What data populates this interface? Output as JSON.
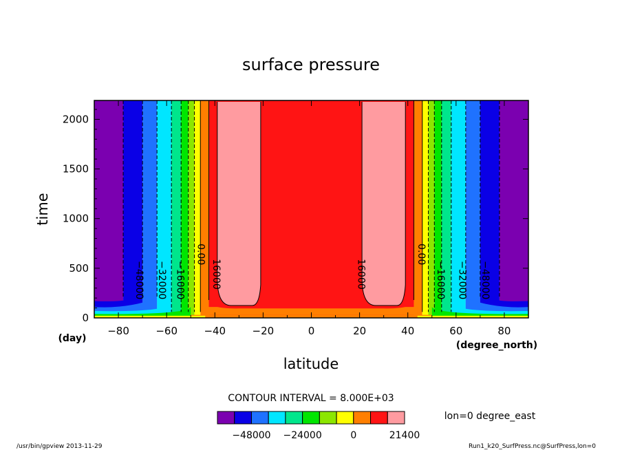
{
  "chart_data": {
    "type": "heatmap",
    "title": "surface pressure",
    "xlabel": "latitude",
    "ylabel": "time",
    "x_unit": "(degree_north)",
    "y_unit": "(day)",
    "xlim": [
      -90,
      90
    ],
    "ylim": [
      0,
      2190
    ],
    "x_ticks": [
      -80,
      -60,
      -40,
      -20,
      0,
      20,
      40,
      60,
      80
    ],
    "y_ticks": [
      0,
      500,
      1000,
      1500,
      2000
    ],
    "x_tick_labels": [
      "−80",
      "−60",
      "−40",
      "−20",
      "0",
      "20",
      "40",
      "60",
      "80"
    ],
    "y_tick_labels": [
      "0",
      "500",
      "1000",
      "1500",
      "2000"
    ],
    "contour_interval": "CONTOUR INTERVAL = 8.000E+03",
    "contour_labels": [
      {
        "text": "−48000",
        "lat": -71.5,
        "time": 380
      },
      {
        "text": "−32000",
        "lat": -62,
        "time": 380
      },
      {
        "text": "−16000",
        "lat": -54.5,
        "time": 380
      },
      {
        "text": "0.00",
        "lat": -46,
        "time": 640
      },
      {
        "text": "16000",
        "lat": -39.5,
        "time": 440
      },
      {
        "text": "16000",
        "lat": 20.5,
        "time": 440
      },
      {
        "text": "0.00",
        "lat": 45.5,
        "time": 640
      },
      {
        "text": "−16000",
        "lat": 53.5,
        "time": 380
      },
      {
        "text": "−32000",
        "lat": 62.5,
        "time": 380
      },
      {
        "text": "−48000",
        "lat": 72,
        "time": 380
      }
    ],
    "steady_state_bands": [
      {
        "lat": [
          -90,
          -78
        ],
        "color": "#7b00b0"
      },
      {
        "lat": [
          -78,
          -70
        ],
        "color": "#0a00e6"
      },
      {
        "lat": [
          -70,
          -64
        ],
        "color": "#1f72ff"
      },
      {
        "lat": [
          -64,
          -58
        ],
        "color": "#00e6ff"
      },
      {
        "lat": [
          -58,
          -54
        ],
        "color": "#00e68c"
      },
      {
        "lat": [
          -54,
          -51
        ],
        "color": "#00e600"
      },
      {
        "lat": [
          -51,
          -48.5
        ],
        "color": "#8ce600"
      },
      {
        "lat": [
          -48.5,
          -46
        ],
        "color": "#ffff00"
      },
      {
        "lat": [
          -46,
          -42.5
        ],
        "color": "#ff7f00"
      },
      {
        "lat": [
          -42.5,
          42.5
        ],
        "color": "#ff1414"
      },
      {
        "lat": [
          42.5,
          46
        ],
        "color": "#ff7f00"
      },
      {
        "lat": [
          46,
          48.5
        ],
        "color": "#ffff00"
      },
      {
        "lat": [
          48.5,
          51
        ],
        "color": "#8ce600"
      },
      {
        "lat": [
          51,
          54
        ],
        "color": "#00e600"
      },
      {
        "lat": [
          54,
          58
        ],
        "color": "#00e68c"
      },
      {
        "lat": [
          58,
          64
        ],
        "color": "#00e6ff"
      },
      {
        "lat": [
          64,
          70
        ],
        "color": "#1f72ff"
      },
      {
        "lat": [
          70,
          78
        ],
        "color": "#0a00e6"
      },
      {
        "lat": [
          78,
          90
        ],
        "color": "#7b00b0"
      }
    ],
    "high_regions": [
      {
        "lat": [
          -39,
          -21
        ],
        "time_min": 125,
        "color": "#ff9ba0"
      },
      {
        "lat": [
          21,
          39
        ],
        "time_min": 125,
        "color": "#ff9ba0"
      }
    ],
    "colorbar": {
      "colors": [
        "#7b00b0",
        "#0a00e6",
        "#1f72ff",
        "#00e6ff",
        "#00e68c",
        "#00e600",
        "#8ce600",
        "#ffff00",
        "#ff7f00",
        "#ff1414",
        "#ff9ba0"
      ],
      "tick_labels": [
        "−48000",
        "−24000",
        "0",
        "21400"
      ]
    }
  },
  "annotations": {
    "lon": "lon=0 degree_east",
    "footer_left": "/usr/bin/gpview  2013-11-29",
    "footer_right": "Run1_k20_SurfPress.nc@SurfPress,lon=0"
  }
}
